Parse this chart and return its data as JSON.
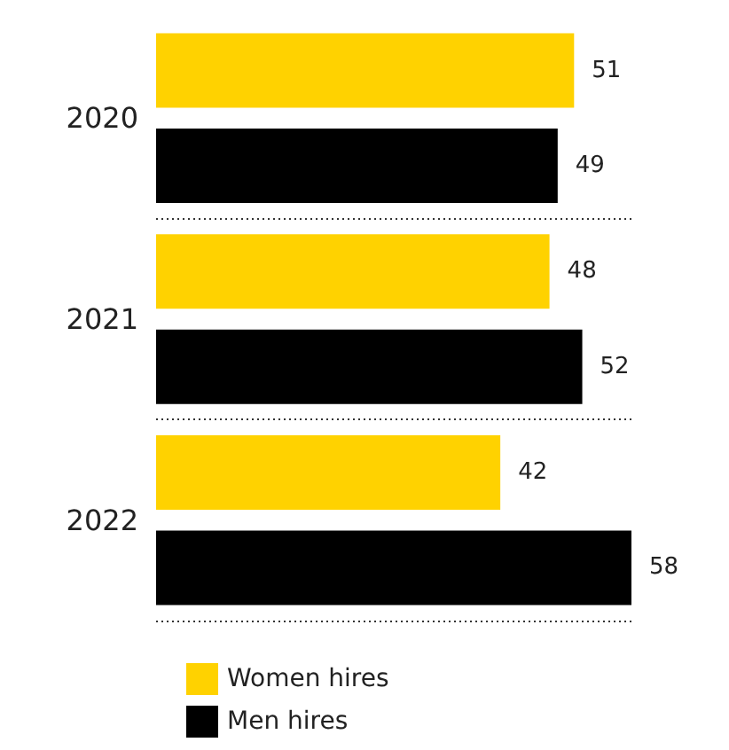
{
  "chart_data": {
    "type": "bar",
    "orientation": "horizontal",
    "categories": [
      "2020",
      "2021",
      "2022"
    ],
    "series": [
      {
        "name": "Women hires",
        "color": "#ffd200",
        "values": [
          51,
          48,
          42
        ]
      },
      {
        "name": "Men hires",
        "color": "#000000",
        "values": [
          49,
          52,
          58
        ]
      }
    ],
    "data_labels": true,
    "tick_labels": "y",
    "grid": "y",
    "legend": "bottom left"
  }
}
